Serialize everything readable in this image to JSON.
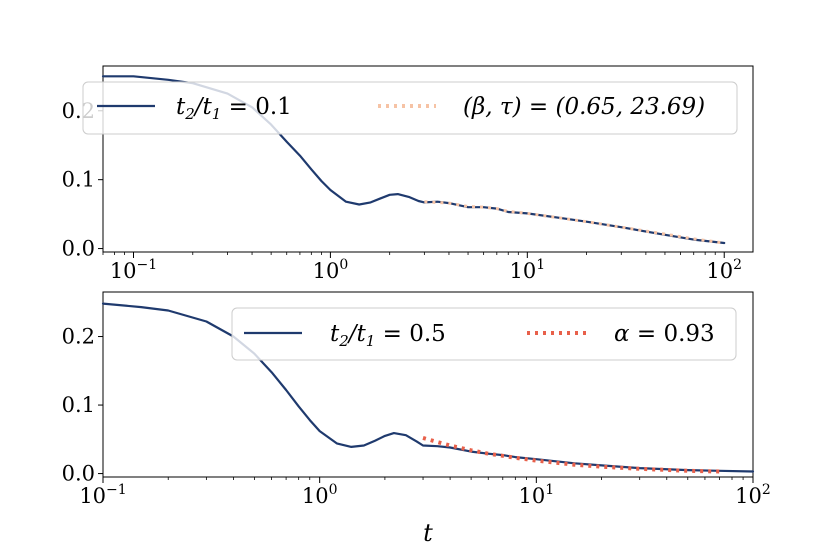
{
  "chart_data": [
    {
      "type": "line",
      "xscale": "log",
      "xlim": [
        0.07,
        140
      ],
      "ylim": [
        -0.005,
        0.265
      ],
      "yticks": [
        0.0,
        0.1,
        0.2
      ],
      "ytick_labels": [
        "0.0",
        "0.1",
        "0.2"
      ],
      "xtick_labels": [
        "10^{-1}",
        "10^{0}",
        "10^{1}",
        "10^{2}"
      ],
      "xticks": [
        0.1,
        1,
        10,
        100
      ],
      "xlabel": "",
      "legend_position": "top",
      "series": [
        {
          "name": "t_2/t_1 = 0.1",
          "color": "#1f3a6e",
          "style": "solid",
          "x": [
            0.07,
            0.1,
            0.15,
            0.2,
            0.3,
            0.4,
            0.5,
            0.6,
            0.7,
            0.8,
            0.9,
            1.0,
            1.2,
            1.4,
            1.6,
            1.8,
            2.0,
            2.2,
            2.5,
            2.8,
            3.0,
            3.5,
            4.0,
            5.0,
            6.0,
            7.0,
            8.0,
            10,
            15,
            20,
            30,
            50,
            70,
            100
          ],
          "y": [
            0.25,
            0.25,
            0.245,
            0.24,
            0.225,
            0.205,
            0.18,
            0.155,
            0.135,
            0.115,
            0.098,
            0.085,
            0.068,
            0.064,
            0.067,
            0.073,
            0.078,
            0.079,
            0.075,
            0.069,
            0.067,
            0.068,
            0.066,
            0.06,
            0.06,
            0.058,
            0.053,
            0.051,
            0.044,
            0.039,
            0.031,
            0.02,
            0.013,
            0.008
          ]
        },
        {
          "name": "(β, τ) = (0.65, 23.69)",
          "color": "#f6c3a5",
          "style": "dotted",
          "x": [
            3.0,
            4.0,
            5.0,
            6.0,
            7.0,
            8.0,
            10,
            15,
            20,
            30,
            50,
            70,
            100
          ],
          "y": [
            0.068,
            0.066,
            0.061,
            0.06,
            0.058,
            0.054,
            0.051,
            0.044,
            0.039,
            0.031,
            0.021,
            0.014,
            0.008
          ]
        }
      ]
    },
    {
      "type": "line",
      "xscale": "log",
      "xlim": [
        0.1,
        100
      ],
      "ylim": [
        -0.005,
        0.265
      ],
      "yticks": [
        0.0,
        0.1,
        0.2
      ],
      "ytick_labels": [
        "0.0",
        "0.1",
        "0.2"
      ],
      "xtick_labels": [
        "10^{-1}",
        "10^{0}",
        "10^{1}",
        "10^{2}"
      ],
      "xticks": [
        0.1,
        1,
        10,
        100
      ],
      "xlabel": "t",
      "legend_position": "top-right",
      "series": [
        {
          "name": "t_2/t_1 = 0.5",
          "color": "#1f3a6e",
          "style": "solid",
          "x": [
            0.1,
            0.15,
            0.2,
            0.3,
            0.4,
            0.5,
            0.6,
            0.7,
            0.8,
            0.9,
            1.0,
            1.2,
            1.4,
            1.6,
            1.8,
            2.0,
            2.2,
            2.5,
            2.8,
            3.0,
            3.5,
            4.0,
            5.0,
            6.0,
            7.0,
            8.0,
            10,
            15,
            20,
            30,
            50,
            70,
            100
          ],
          "y": [
            0.248,
            0.243,
            0.238,
            0.222,
            0.2,
            0.175,
            0.148,
            0.122,
            0.098,
            0.078,
            0.062,
            0.044,
            0.039,
            0.041,
            0.048,
            0.055,
            0.059,
            0.056,
            0.047,
            0.041,
            0.04,
            0.038,
            0.032,
            0.029,
            0.027,
            0.024,
            0.021,
            0.015,
            0.012,
            0.008,
            0.005,
            0.004,
            0.003
          ]
        },
        {
          "name": "α = 0.93",
          "color": "#e8604a",
          "style": "dotted",
          "x": [
            3.0,
            3.5,
            4.0,
            5.0,
            6.0,
            7.0,
            8.0,
            10,
            15,
            20,
            30,
            50,
            70
          ],
          "y": [
            0.052,
            0.046,
            0.041,
            0.034,
            0.029,
            0.026,
            0.023,
            0.019,
            0.013,
            0.01,
            0.007,
            0.004,
            0.003
          ]
        }
      ]
    }
  ]
}
